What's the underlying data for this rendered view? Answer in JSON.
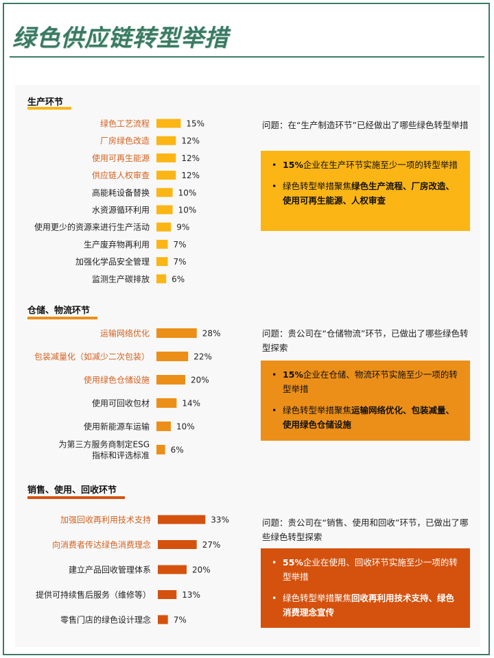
{
  "title": "绿色供应链转型举措",
  "colors": {
    "section1": "#fbb515",
    "section2": "#ec8f19",
    "section3": "#d4520e",
    "highlight_label": "#d4611e",
    "normal_label": "#222222",
    "frame": "#3a7a63"
  },
  "sections": [
    {
      "title": "生产环节",
      "question": "问题：在“生产制造环节”已经做出了哪些绿色转型举措",
      "bullet1": {
        "bold": "15%",
        "rest": "企业在生产环节实施至少一项的转型举措"
      },
      "bullet2": {
        "rest": "绿色转型举措聚焦",
        "bold": "绿色生产流程、厂房改造、使用可再生能源、人权审查"
      }
    },
    {
      "title": "仓储、物流环节",
      "question": "问题：贵公司在“仓储物流”环节，已做出了哪些绿色转型探索",
      "bullet1": {
        "bold": "15%",
        "rest": "企业在仓储、物流环节实施至少一项的转型举措"
      },
      "bullet2": {
        "rest": "绿色转型举措聚焦",
        "bold": "运输网络优化、包装减量、使用绿色仓储设施"
      }
    },
    {
      "title": "销售、使用、回收环节",
      "question": "问题：贵公司在“销售、使用和回收”环节，已做出了哪些绿色转型探索",
      "bullet1": {
        "bold": "55%",
        "rest": "企业在使用、回收环节实施至少一项的转型举措"
      },
      "bullet2": {
        "rest": "绿色转型举措聚焦",
        "bold": "回收再利用技术支持、绿色消费理念宣传"
      }
    }
  ],
  "chart_data": [
    {
      "type": "bar",
      "orientation": "horizontal",
      "title": "生产环节",
      "categories": [
        "绿色工艺流程",
        "厂房绿色改造",
        "使用可再生能源",
        "供应链人权审查",
        "高能耗设备替换",
        "水资源循环利用",
        "使用更少的资源来进行生产活动",
        "生产废弃物再利用",
        "加强化学品安全管理",
        "监测生产碳排放"
      ],
      "values": [
        15,
        12,
        12,
        12,
        10,
        10,
        9,
        7,
        7,
        6
      ],
      "value_labels": [
        "15%",
        "12%",
        "12%",
        "12%",
        "10%",
        "10%",
        "9%",
        "7%",
        "7%",
        "6%"
      ],
      "highlighted": [
        true,
        true,
        true,
        true,
        false,
        false,
        false,
        false,
        false,
        false
      ],
      "color": "#fbb515"
    },
    {
      "type": "bar",
      "orientation": "horizontal",
      "title": "仓储、物流环节",
      "categories": [
        "运输网络优化",
        "包装减量化（如减少二次包装）",
        "使用绿色仓储设施",
        "使用可回收包材",
        "使用新能源车运输",
        "为第三方服务商制定ESG指标和评选标准"
      ],
      "values": [
        28,
        22,
        20,
        14,
        10,
        6
      ],
      "value_labels": [
        "28%",
        "22%",
        "20%",
        "14%",
        "10%",
        "6%"
      ],
      "highlighted": [
        true,
        true,
        true,
        false,
        false,
        false
      ],
      "color": "#ec8f19"
    },
    {
      "type": "bar",
      "orientation": "horizontal",
      "title": "销售、使用、回收环节",
      "categories": [
        "加强回收再利用技术支持",
        "向消费者传达绿色消费理念",
        "建立产品回收管理体系",
        "提供可持续售后服务（维修等）",
        "零售门店的绿色设计理念"
      ],
      "values": [
        33,
        27,
        20,
        13,
        7
      ],
      "value_labels": [
        "33%",
        "27%",
        "20%",
        "13%",
        "7%"
      ],
      "highlighted": [
        true,
        true,
        false,
        false,
        false
      ],
      "color": "#d4520e"
    }
  ]
}
